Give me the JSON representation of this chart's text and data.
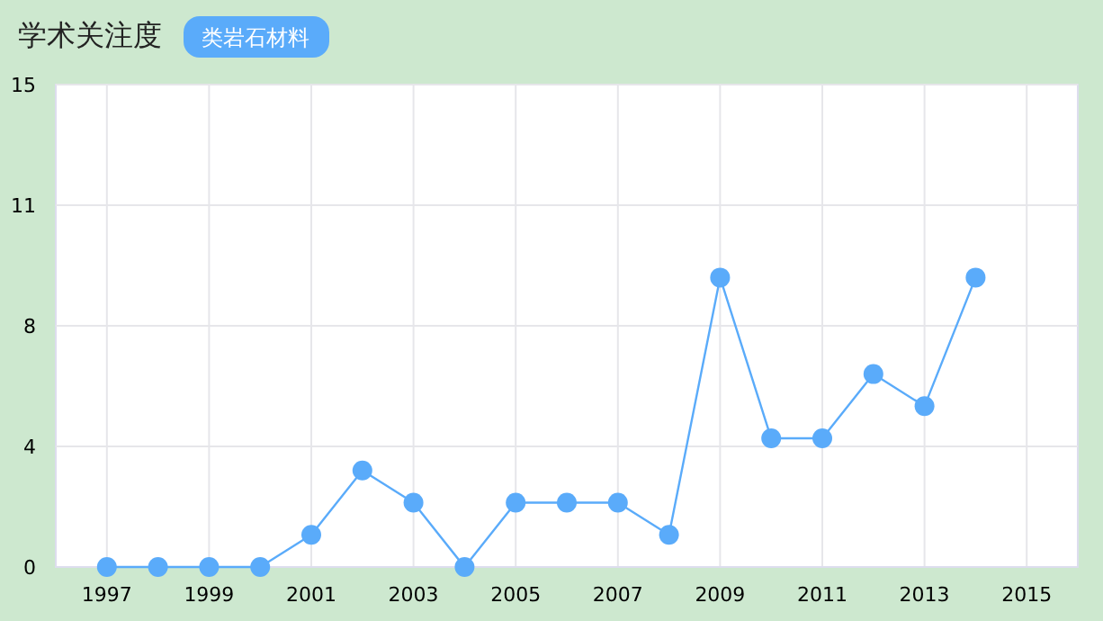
{
  "chart_data": {
    "type": "line",
    "title": "学术关注度",
    "subtitle": "类岩石材料",
    "x": [
      1997,
      1998,
      1999,
      2000,
      2001,
      2002,
      2003,
      2004,
      2005,
      2006,
      2007,
      2008,
      2009,
      2010,
      2011,
      2012,
      2013,
      2014
    ],
    "series": [
      {
        "color": "#5aabfa",
        "values": [
          0,
          0,
          0,
          0,
          1,
          3,
          2,
          0,
          2,
          2,
          2,
          1,
          9,
          4,
          4,
          6,
          5,
          9
        ]
      }
    ],
    "xlim": [
      1996,
      2016
    ],
    "xticks": [
      1997,
      1999,
      2001,
      2003,
      2005,
      2007,
      2009,
      2011,
      2013,
      2015
    ],
    "ylim": [
      0,
      15
    ],
    "yticks": [
      0,
      {
        "value": 3.75,
        "label": "4"
      },
      {
        "value": 7.5,
        "label": "8"
      },
      {
        "value": 11.25,
        "label": "11"
      },
      15
    ],
    "grid": true,
    "marker": "circle"
  }
}
